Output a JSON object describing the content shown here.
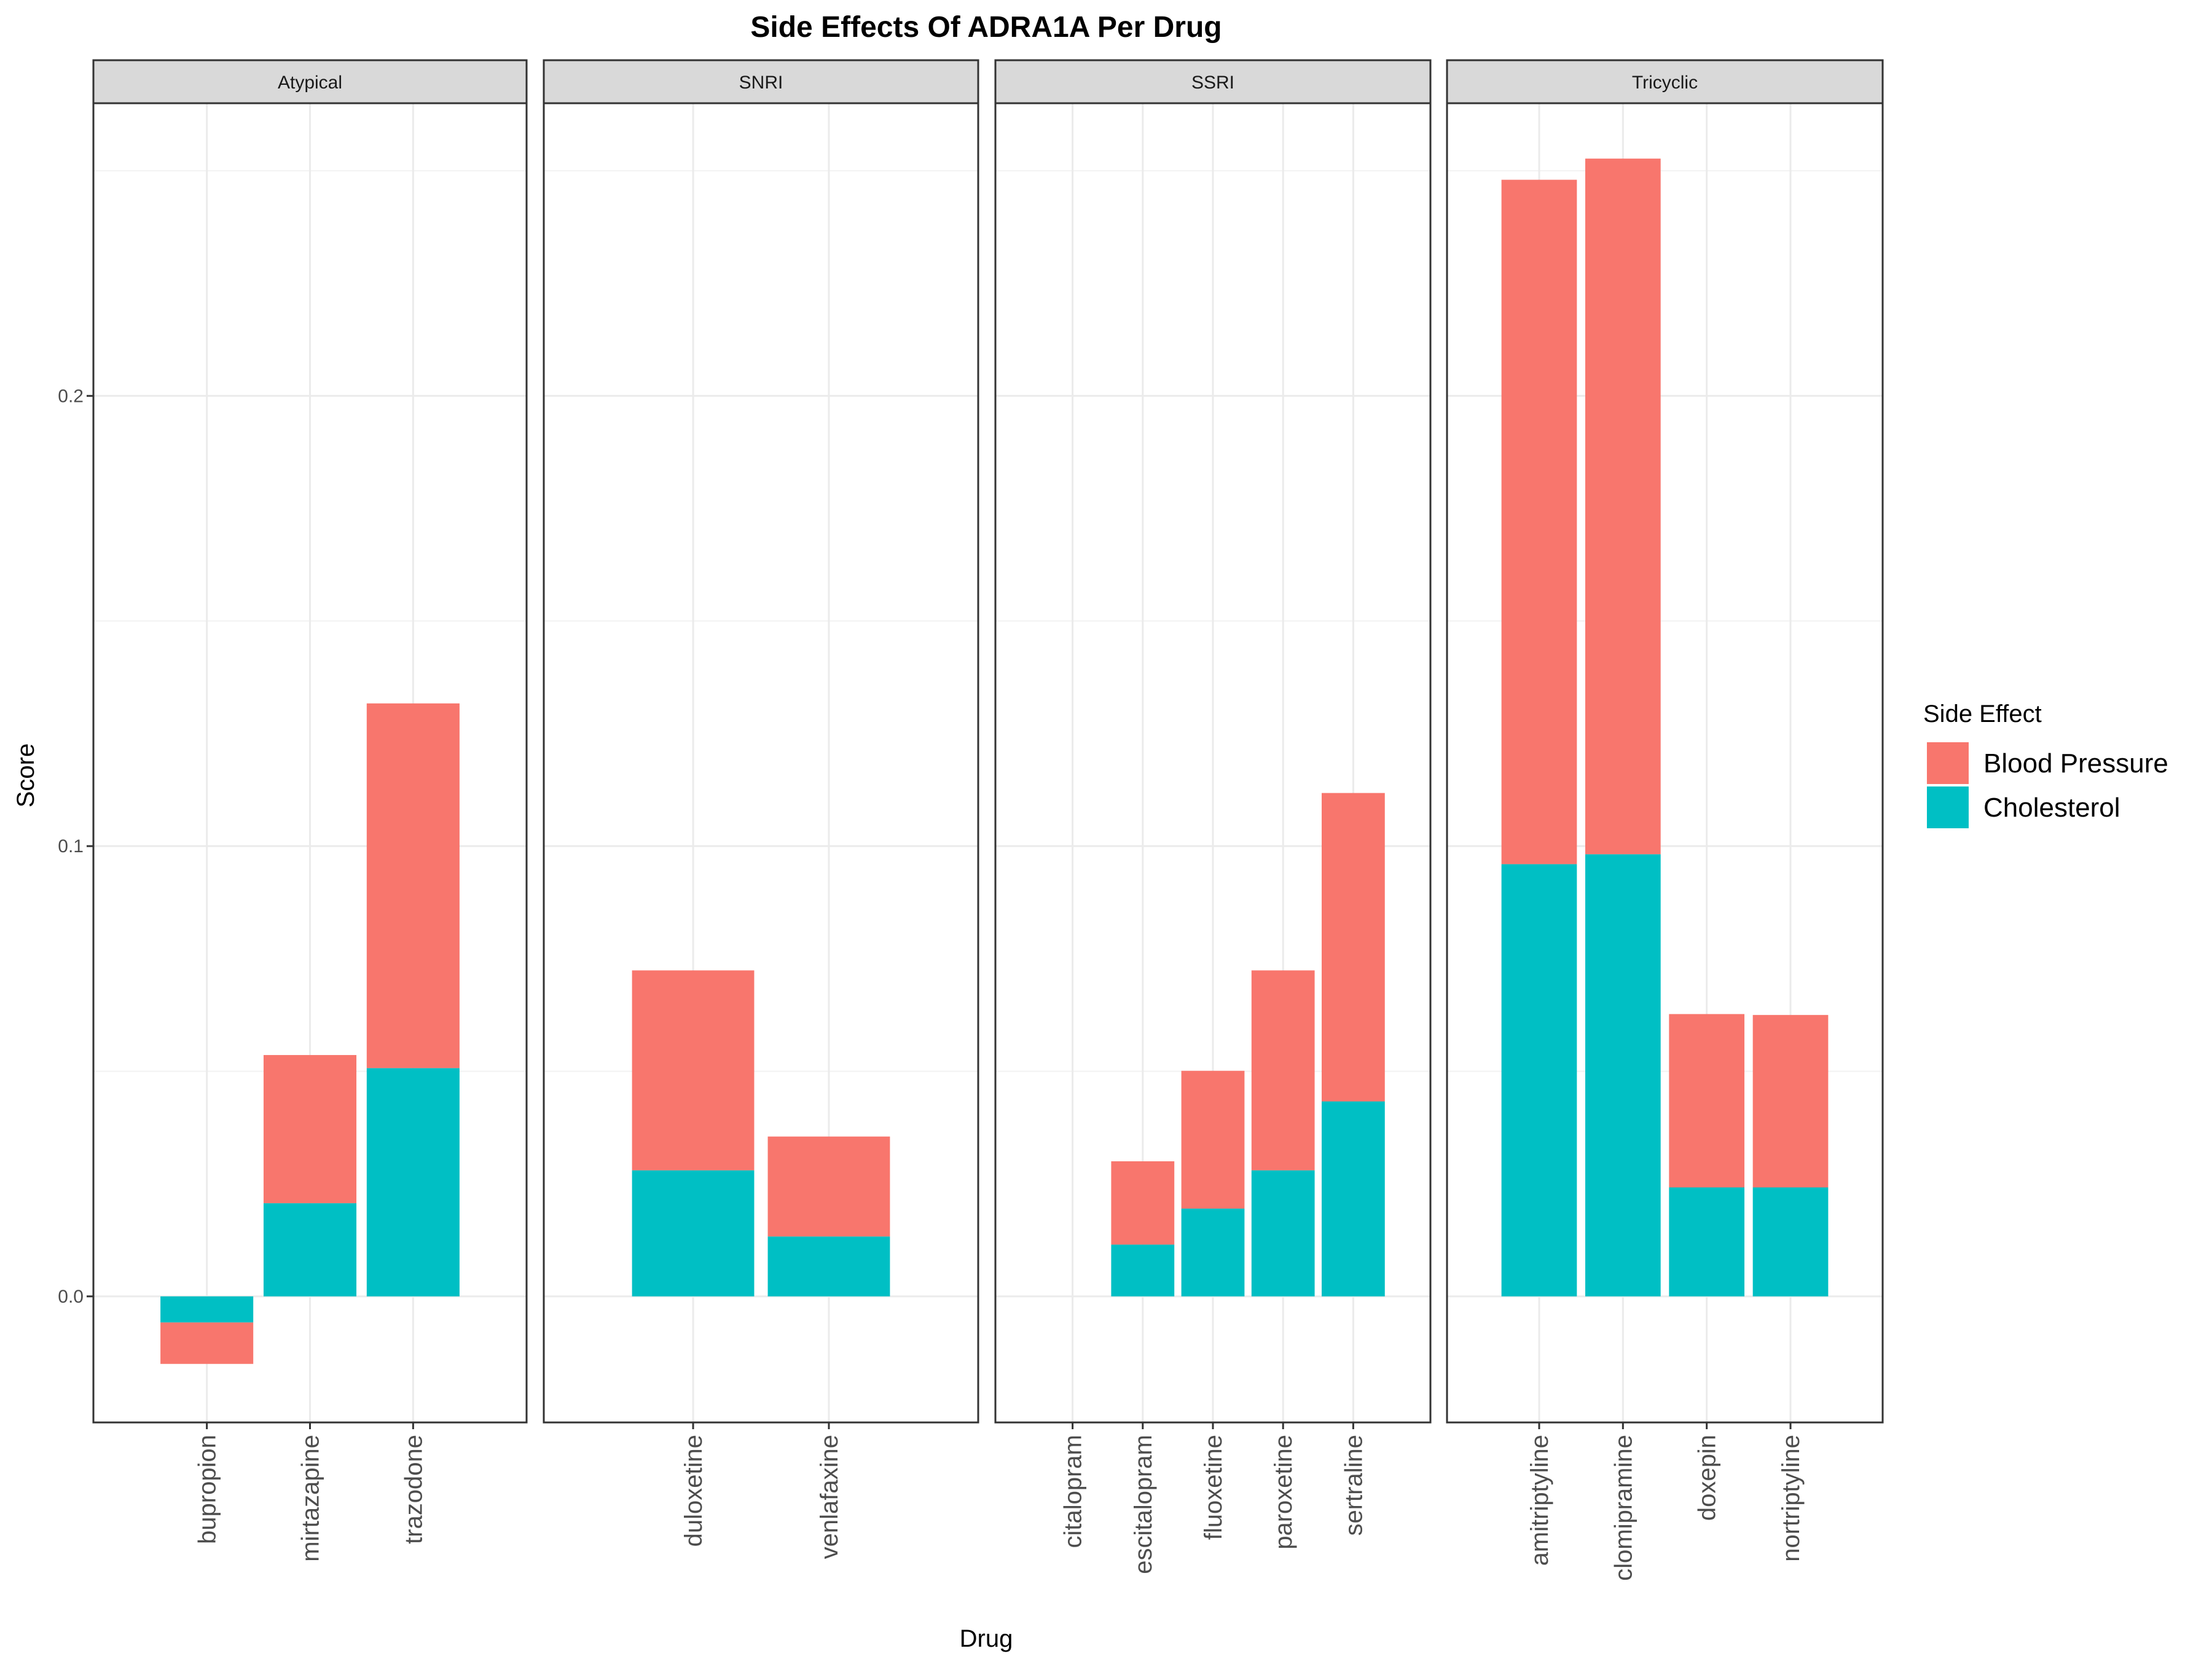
{
  "chart_data": {
    "type": "bar",
    "stacked": true,
    "title": "Side Effects Of ADRA1A Per Drug",
    "xlabel": "Drug",
    "ylabel": "Score",
    "ylim": [
      -0.028,
      0.265
    ],
    "yticks": [
      0.0,
      0.1,
      0.2
    ],
    "ytick_labels": [
      "0.0",
      "0.1",
      "0.2"
    ],
    "grid": true,
    "legend": {
      "title": "Side Effect",
      "position": "right",
      "entries": [
        {
          "label": "Blood Pressure",
          "color": "#F8766D"
        },
        {
          "label": "Cholesterol",
          "color": "#00BFC4"
        }
      ]
    },
    "series": [
      {
        "name": "Blood Pressure",
        "color": "#F8766D"
      },
      {
        "name": "Cholesterol",
        "color": "#00BFC4"
      }
    ],
    "facets": [
      {
        "label": "Atypical",
        "categories": [
          "bupropion",
          "mirtazapine",
          "trazodone"
        ],
        "cholesterol": [
          -0.0058,
          0.0207,
          0.0507
        ],
        "blood_pressure": [
          -0.0092,
          0.0329,
          0.081
        ]
      },
      {
        "label": "SNRI",
        "categories": [
          "duloxetine",
          "venlafaxine"
        ],
        "cholesterol": [
          0.028,
          0.0133
        ],
        "blood_pressure": [
          0.0444,
          0.0222
        ]
      },
      {
        "label": "SSRI",
        "categories": [
          "citalopram",
          "escitalopram",
          "fluoxetine",
          "paroxetine",
          "sertraline"
        ],
        "cholesterol": [
          0.0,
          0.0115,
          0.0195,
          0.028,
          0.0433
        ],
        "blood_pressure": [
          0.0,
          0.0185,
          0.0306,
          0.0444,
          0.0685
        ]
      },
      {
        "label": "Tricyclic",
        "categories": [
          "amitriptyline",
          "clomipramine",
          "doxepin",
          "nortriptyline"
        ],
        "cholesterol": [
          0.096,
          0.0982,
          0.0242,
          0.0242
        ],
        "blood_pressure": [
          0.152,
          0.1545,
          0.0385,
          0.0383
        ]
      }
    ]
  }
}
